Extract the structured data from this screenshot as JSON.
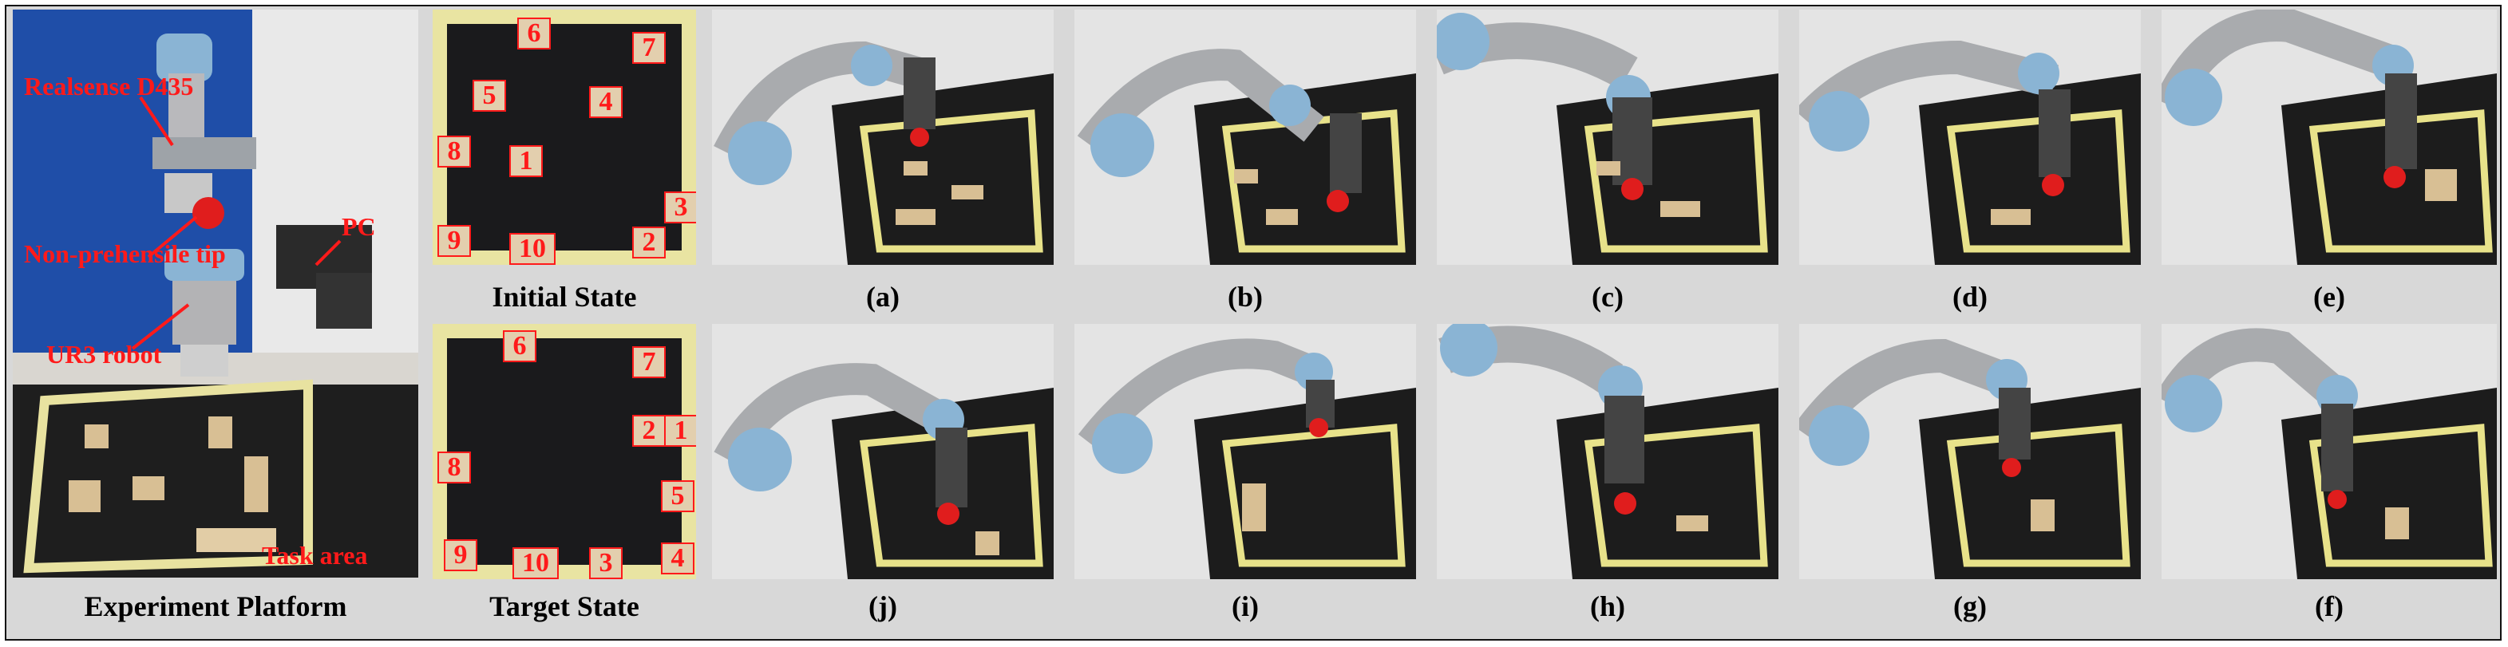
{
  "platform": {
    "caption": "Experiment Platform",
    "labels": {
      "camera": "Realsense D435",
      "pc": "PC",
      "tip": "Non-prehensile tip",
      "robot": "UR3 robot",
      "task_area": "Task area"
    }
  },
  "initial_state": {
    "caption": "Initial State",
    "numbers": [
      "6",
      "7",
      "5",
      "4",
      "8",
      "1",
      "3",
      "9",
      "10",
      "2"
    ]
  },
  "target_state": {
    "caption": "Target State",
    "numbers": [
      "6",
      "7",
      "2",
      "1",
      "8",
      "5",
      "9",
      "10",
      "3",
      "4"
    ]
  },
  "top_row": [
    "(a)",
    "(b)",
    "(c)",
    "(d)",
    "(e)"
  ],
  "bottom_row": [
    "(j)",
    "(i)",
    "(h)",
    "(g)",
    "(f)"
  ],
  "colors": {
    "background": "#d8d8d8",
    "board_tape": "#e9e4a2",
    "label_red": "#ff1a1a",
    "robot_blue": "#8ab4d4"
  }
}
